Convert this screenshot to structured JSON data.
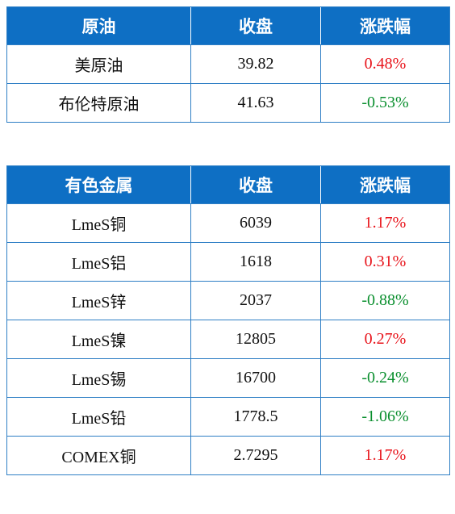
{
  "crude": {
    "headers": [
      "原油",
      "收盘",
      "涨跌幅"
    ],
    "rows": [
      {
        "name": "美原油",
        "close": "39.82",
        "change": "0.48%",
        "direction": "up"
      },
      {
        "name": "布伦特原油",
        "close": "41.63",
        "change": "-0.53%",
        "direction": "down"
      }
    ]
  },
  "metals": {
    "headers": [
      "有色金属",
      "收盘",
      "涨跌幅"
    ],
    "rows": [
      {
        "name": "LmeS铜",
        "close": "6039",
        "change": "1.17%",
        "direction": "up"
      },
      {
        "name": "LmeS铝",
        "close": "1618",
        "change": "0.31%",
        "direction": "up"
      },
      {
        "name": "LmeS锌",
        "close": "2037",
        "change": "-0.88%",
        "direction": "down"
      },
      {
        "name": "LmeS镍",
        "close": "12805",
        "change": "0.27%",
        "direction": "up"
      },
      {
        "name": "LmeS锡",
        "close": "16700",
        "change": "-0.24%",
        "direction": "down"
      },
      {
        "name": "LmeS铅",
        "close": "1778.5",
        "change": "-1.06%",
        "direction": "down"
      },
      {
        "name": "COMEX铜",
        "close": "2.7295",
        "change": "1.17%",
        "direction": "up"
      }
    ]
  },
  "colors": {
    "header_bg": "#0e6fc4",
    "header_text": "#ffffff",
    "border": "#2f7fc5",
    "up": "#e8141b",
    "down": "#0a8f2e"
  }
}
